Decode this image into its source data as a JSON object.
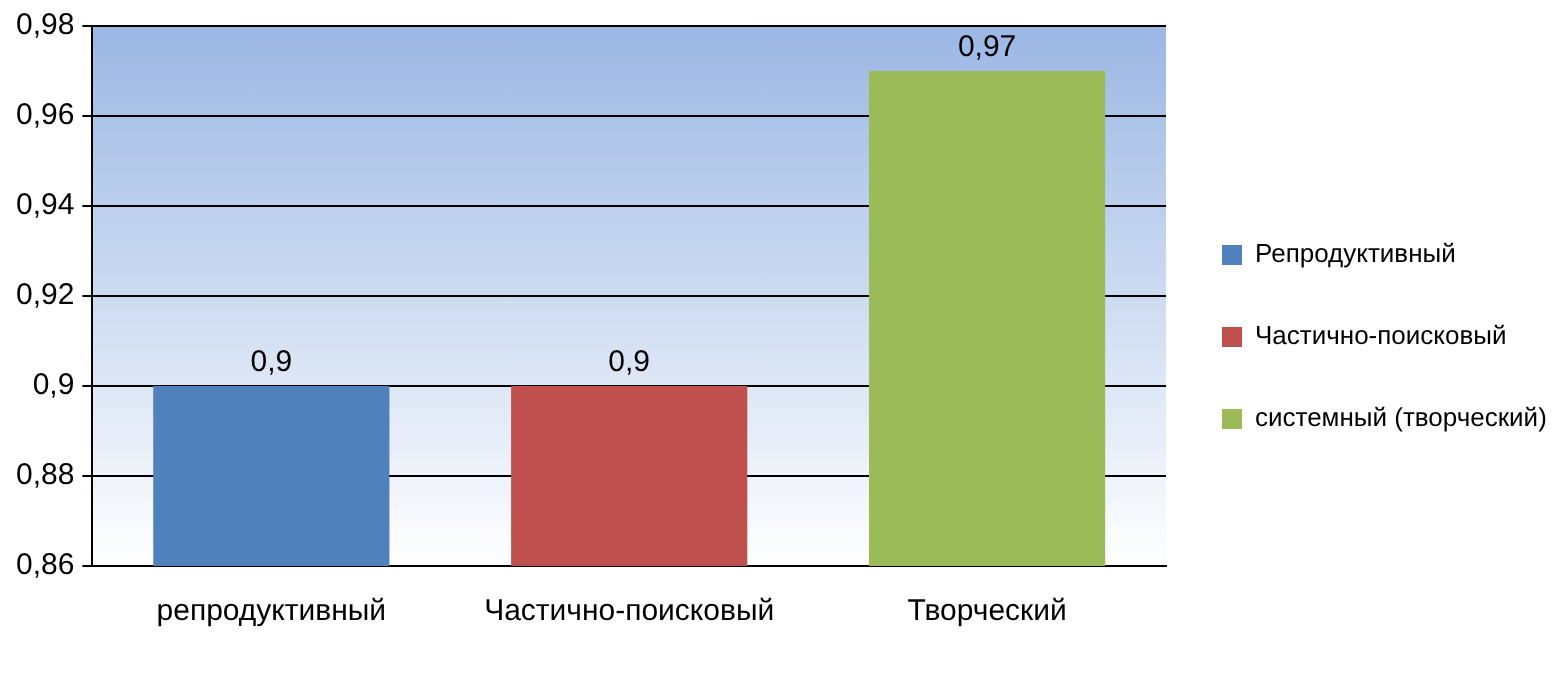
{
  "chart_data": {
    "type": "bar",
    "categories": [
      "репродуктивный",
      "Частично-поисковый",
      "Творческий"
    ],
    "stacked": true,
    "series": [
      {
        "name": "Репродуктивный",
        "color": "#4f81bd",
        "values": [
          0.9,
          null,
          null
        ],
        "value_labels": [
          "0,9",
          null,
          null
        ]
      },
      {
        "name": "Частично-поисковый",
        "color": "#c0504d",
        "values": [
          null,
          0.9,
          null
        ],
        "value_labels": [
          null,
          "0,9",
          null
        ]
      },
      {
        "name": "системный (творческий)",
        "color": "#9bbb59",
        "values": [
          null,
          null,
          0.97
        ],
        "value_labels": [
          null,
          null,
          "0,97"
        ]
      }
    ],
    "ylim": [
      0.86,
      0.98
    ],
    "yticks": [
      {
        "value": 0.86,
        "label": "0,86"
      },
      {
        "value": 0.88,
        "label": "0,88"
      },
      {
        "value": 0.9,
        "label": "0,9"
      },
      {
        "value": 0.92,
        "label": "0,92"
      },
      {
        "value": 0.94,
        "label": "0,94"
      },
      {
        "value": 0.96,
        "label": "0,96"
      },
      {
        "value": 0.98,
        "label": "0,98"
      }
    ],
    "grid": "y",
    "legend": "right"
  }
}
